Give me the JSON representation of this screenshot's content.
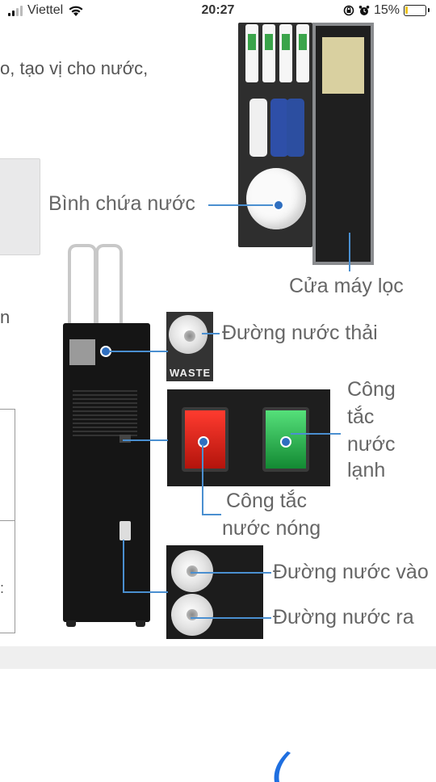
{
  "status_bar": {
    "carrier": "Viettel",
    "time": "20:27",
    "battery_percent": "15%",
    "battery_level": 0.15,
    "icons": [
      "signal-icon",
      "wifi-icon",
      "rotation-lock-icon",
      "alarm-icon",
      "battery-icon"
    ]
  },
  "page_fragments": {
    "text_line_1": "o, tạo vị cho nước,",
    "text_line_2": "n",
    "text_line_3": ":"
  },
  "labels": {
    "storage_tank": "Bình chứa nước",
    "filter_door": "Cửa máy lọc",
    "waste_line": "Đường nước thải",
    "cold_switch": [
      "Công",
      "tắc",
      "nước",
      "lạnh"
    ],
    "hot_switch": [
      "Công tắc",
      "nước nóng"
    ],
    "water_inlet": "Đường nước vào",
    "water_outlet": "Đường nước ra"
  },
  "inset_text": {
    "waste": "WASTE"
  },
  "colors": {
    "callout_line": "#4a8fd0",
    "hot_switch": "#d8281e",
    "cold_switch": "#27b44c",
    "grey_band": "#efefef",
    "logo": "#1f6fe0"
  }
}
